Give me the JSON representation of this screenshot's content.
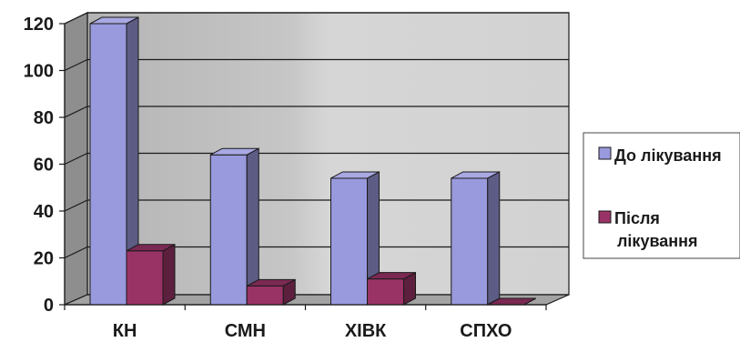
{
  "chart_data": {
    "type": "bar",
    "variant": "3d-clustered-column",
    "categories": [
      "КН",
      "СМН",
      "ХІВК",
      "СПХО"
    ],
    "series": [
      {
        "name": "До лікування",
        "values": [
          120,
          64,
          54,
          54
        ],
        "color": "#9999dd"
      },
      {
        "name": "Після лікування",
        "values": [
          23,
          8,
          11,
          0
        ],
        "color": "#993366"
      }
    ],
    "title": "",
    "xlabel": "",
    "ylabel": "",
    "ylim": [
      0,
      120
    ],
    "yticks": [
      0,
      20,
      40,
      60,
      80,
      100,
      120
    ],
    "grid": true,
    "legend_position": "right",
    "legend_label_lines": [
      [
        "До лікування"
      ],
      [
        "Після",
        "лікування"
      ]
    ],
    "colors": {
      "back_wall": "#c8c8c8",
      "floor": "#a0a0a0",
      "gridline": "#1a1a1a"
    }
  }
}
